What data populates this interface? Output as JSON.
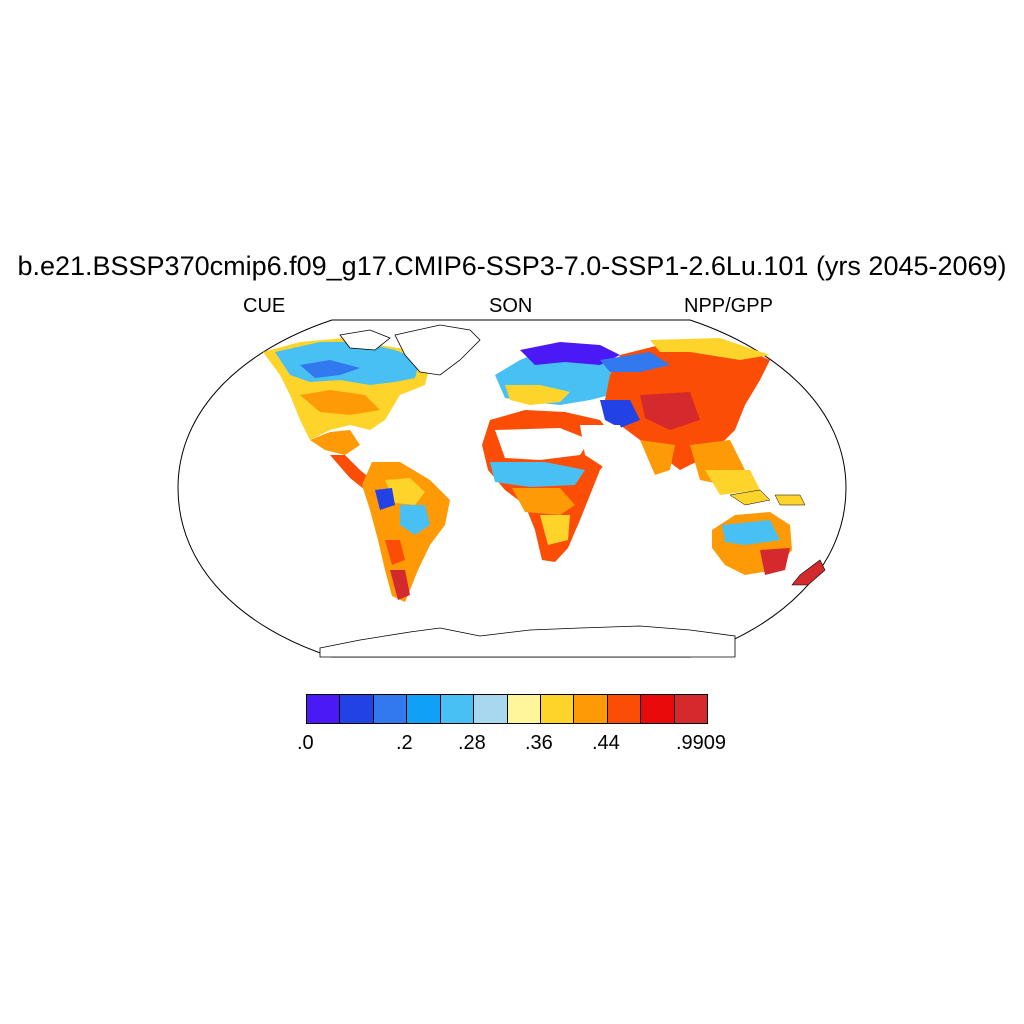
{
  "figure": {
    "title": "b.e21.BSSP370cmip6.f09_g17.CMIP6-SSP3-7.0-SSP1-2.6Lu.101 (yrs 2045-2069)",
    "left_label": "CUE",
    "center_label": "SON",
    "right_label": "NPP/GPP"
  },
  "colorbar": {
    "colors": [
      "#4b19f5",
      "#2342e6",
      "#3278ee",
      "#10a0f5",
      "#48c0f4",
      "#a8d8f0",
      "#fff59a",
      "#fed42b",
      "#fd9a06",
      "#fb4d05",
      "#e90b0b",
      "#d42a2e"
    ],
    "labels": [
      ".0",
      ".2",
      ".28",
      ".36",
      ".44",
      ".9909"
    ]
  },
  "map": {
    "projection": "robinson",
    "coastline_color": "#000000",
    "land_fill": "#ffffff"
  }
}
